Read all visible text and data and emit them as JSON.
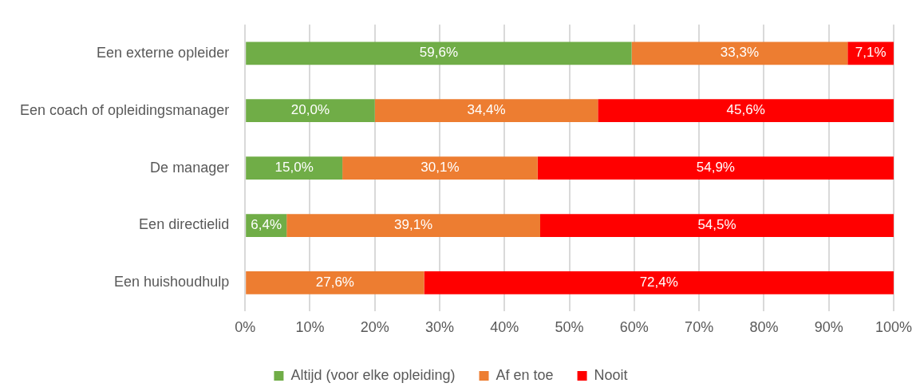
{
  "chart_data": {
    "type": "bar",
    "orientation": "horizontal",
    "stacked": true,
    "categories": [
      "Een externe opleider",
      "Een coach of opleidingsmanager",
      "De manager",
      "Een directielid",
      "Een huishoudhulp"
    ],
    "series": [
      {
        "name": "Altijd (voor elke opleiding)",
        "color": "#70ad47",
        "values": [
          59.6,
          20.0,
          15.0,
          6.4,
          0
        ],
        "value_labels": [
          "59,6%",
          "20,0%",
          "15,0%",
          "6,4%",
          null
        ]
      },
      {
        "name": "Af en toe",
        "color": "#ed7d31",
        "values": [
          33.3,
          34.4,
          30.1,
          39.1,
          27.6
        ],
        "value_labels": [
          "33,3%",
          "34,4%",
          "30,1%",
          "39,1%",
          "27,6%"
        ]
      },
      {
        "name": "Nooit",
        "color": "#ff0000",
        "values": [
          7.1,
          45.6,
          54.9,
          54.5,
          72.4
        ],
        "value_labels": [
          "7,1%",
          "45,6%",
          "54,9%",
          "54,5%",
          "72,4%"
        ]
      }
    ],
    "xlim": [
      0,
      100
    ],
    "xticks": [
      {
        "value": 0,
        "label": "0%"
      },
      {
        "value": 10,
        "label": "10%"
      },
      {
        "value": 20,
        "label": "20%"
      },
      {
        "value": 30,
        "label": "30%"
      },
      {
        "value": 40,
        "label": "40%"
      },
      {
        "value": 50,
        "label": "50%"
      },
      {
        "value": 60,
        "label": "60%"
      },
      {
        "value": 70,
        "label": "70%"
      },
      {
        "value": 80,
        "label": "80%"
      },
      {
        "value": 90,
        "label": "90%"
      },
      {
        "value": 100,
        "label": "100%"
      }
    ],
    "grid": "x",
    "legend": "bottom"
  }
}
